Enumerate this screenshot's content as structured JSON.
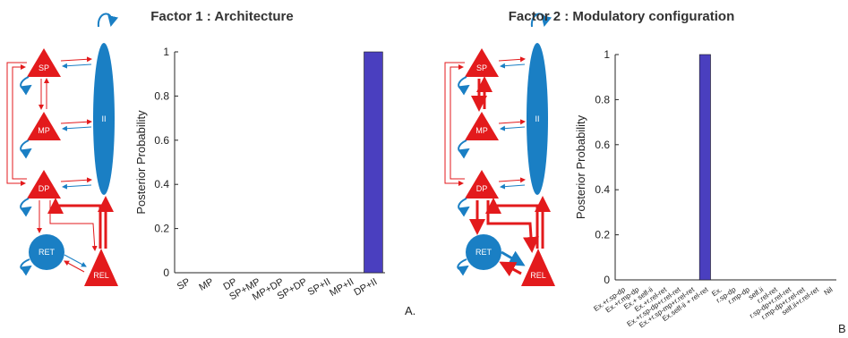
{
  "colors": {
    "excitatory": "#e31a1c",
    "inhibitory": "#1a7fc4",
    "bar": "#4a3fbf"
  },
  "nodes": {
    "sp": "SP",
    "mp": "MP",
    "dp": "DP",
    "ii": "II",
    "ret": "RET",
    "rel": "REL"
  },
  "chart_data": [
    {
      "type": "bar",
      "title": "Factor 1 : Architecture",
      "panel_label": "A.",
      "ylabel": "Posterior Probability",
      "ylim": [
        0,
        1
      ],
      "yticks": [
        "0",
        "0.2",
        "0.4",
        "0.6",
        "0.8",
        "1"
      ],
      "categories": [
        "SP",
        "MP",
        "DP",
        "SP+MP",
        "MP+DP",
        "SP+DP",
        "SP+II",
        "MP+II",
        "DP+II"
      ],
      "values": [
        0,
        0,
        0,
        0,
        0,
        0,
        0,
        0,
        1
      ]
    },
    {
      "type": "bar",
      "title": "Factor 2 : Modulatory configuration",
      "panel_label": "B",
      "ylabel": "Posterior Probability",
      "ylim": [
        0,
        1
      ],
      "yticks": [
        "0",
        "0.2",
        "0.4",
        "0.6",
        "0.8",
        "1"
      ],
      "categories": [
        "Ex.+r.sp-dp",
        "Ex.+r.mp-dp",
        "Ex.+ self-ii",
        "Ex.+r.rel-ret",
        "Ex.+r.sp-dp+r.rel-ret",
        "Ex.+r.sp-mp+r.rel-ret",
        "Ex.self-ii + rel-ret",
        "Ex.",
        "r.sp-dp",
        "r.mp-dp",
        "self.ii",
        "r.rel-ret",
        "r.sp-dp+r.rel-ret",
        "r.mp-dp+r.rel-ret",
        "self.ii+r.rel-ret",
        "Nil"
      ],
      "values": [
        0,
        0,
        0,
        0,
        0,
        0,
        1,
        0,
        0,
        0,
        0,
        0,
        0,
        0,
        0,
        0
      ]
    }
  ]
}
